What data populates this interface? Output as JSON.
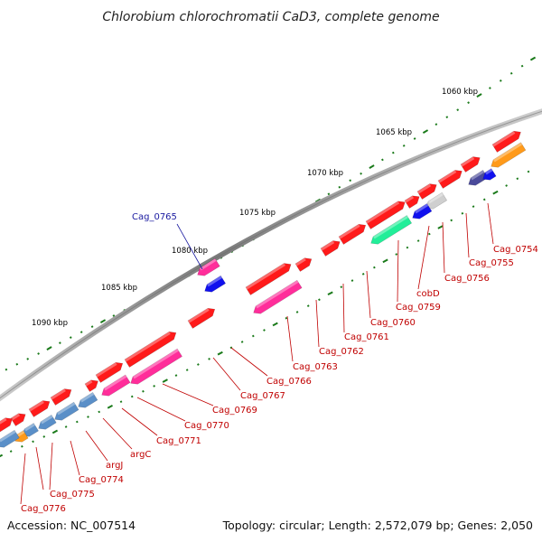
{
  "title": "Chlorobium chlorochromatii CaD3, complete genome",
  "footer": {
    "accession": "Accession: NC_007514",
    "summary": "Topology: circular; Length: 2,572,079 bp; Genes: 2,050"
  },
  "scale_labels": [
    "1060 kbp",
    "1065 kbp",
    "1070 kbp",
    "1075 kbp",
    "1080 kbp",
    "1085 kbp",
    "1090 kbp"
  ],
  "gene_labels": [
    "Cag_0754",
    "Cag_0755",
    "Cag_0756",
    "cobD",
    "Cag_0759",
    "Cag_0760",
    "Cag_0761",
    "Cag_0762",
    "Cag_0763",
    "Cag_0766",
    "Cag_0767",
    "Cag_0769",
    "Cag_0770",
    "Cag_0771",
    "argC",
    "argJ",
    "Cag_0774",
    "Cag_0775",
    "Cag_0776",
    "Cag_0765"
  ],
  "colors": {
    "backbone": "#8a8a8a",
    "gene_default": "#ff1a1a",
    "gene_magenta": "#ff2d9a",
    "gene_blue": "#1010ee",
    "gene_steelblue": "#5a8fc8",
    "gene_navy": "#4a4a9a",
    "gene_orange": "#ff9a1a",
    "gene_green": "#22ee99",
    "gene_gray": "#cfcfcf",
    "tick": "#1a7a1a",
    "label_red": "#c00000",
    "label_blue": "#1a1aa0"
  }
}
